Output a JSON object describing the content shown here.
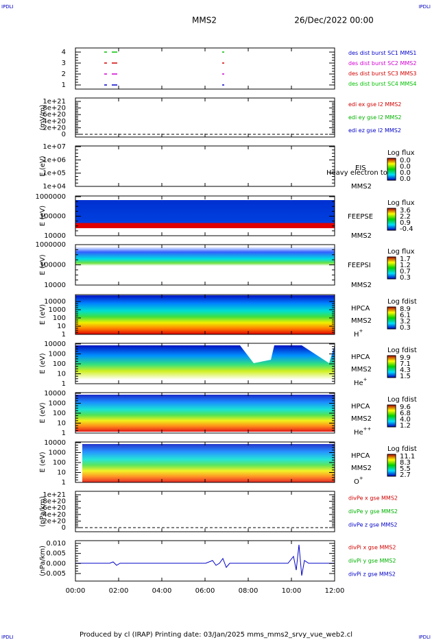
{
  "header": {
    "corner_left": "IPDLI",
    "corner_right": "IPDLI",
    "spacecraft": "MMS2",
    "date": "26/Dec/2022 00:00"
  },
  "panels": [
    {
      "ylabel": null,
      "yticks": [
        "4",
        "3",
        "2",
        "1"
      ],
      "legend": [
        {
          "text": "des dist burst SC1 MMS1",
          "color": "#0000c8"
        },
        {
          "text": "des dist burst SC2 MMS2",
          "color": "#d000d0"
        },
        {
          "text": "des dist burst SC3 MMS3",
          "color": "#d00000"
        },
        {
          "text": "des dist burst SC4 MMS4",
          "color": "#00c000"
        }
      ]
    },
    {
      "ylabel": "(mV/m)",
      "yticks": [
        "1e+21",
        "8e+20",
        "6e+20",
        "4e+20",
        "2e+20",
        "0"
      ],
      "legend": [
        {
          "text": "edi ex gse l2 MMS2",
          "color": "#d00000"
        },
        {
          "text": "edi ey gse l2 MMS2",
          "color": "#00b000"
        },
        {
          "text": "edi ez gse l2 MMS2",
          "color": "#0000c8"
        }
      ]
    },
    {
      "ylabel": "E (eV)",
      "yticks": [
        "1e+07",
        "1e+06",
        "1e+05",
        "1e+04"
      ],
      "labels": [
        "EIS",
        "Heavy electron to",
        "MMS2"
      ],
      "colorbar": {
        "title": "Log flux",
        "ticks": [
          "0.0",
          "0.0",
          "0.0",
          "0.0"
        ]
      }
    },
    {
      "ylabel": "E (eV)",
      "yticks": [
        "1000000",
        "100000",
        "10000"
      ],
      "labels": [
        "FEEPSE",
        "MMS2"
      ],
      "colorbar": {
        "title": "Log flux",
        "ticks": [
          "3.6",
          "2.2",
          "0.9",
          "-0.4"
        ]
      }
    },
    {
      "ylabel": "E (eV)",
      "yticks": [
        "1000000",
        "100000",
        "10000"
      ],
      "labels": [
        "FEEPSI",
        "MMS2"
      ],
      "colorbar": {
        "title": "Log flux",
        "ticks": [
          "1.7",
          "1.2",
          "0.7",
          "0.3"
        ]
      }
    },
    {
      "ylabel": "E (eV)",
      "yticks": [
        "10000",
        "1000",
        "100",
        "10",
        "1"
      ],
      "labels": [
        "HPCA",
        "MMS2"
      ],
      "ion": {
        "base": "H",
        "sup": "+"
      },
      "colorbar": {
        "title": "Log fdist",
        "ticks": [
          "8.9",
          "6.1",
          "3.2",
          "0.3"
        ]
      }
    },
    {
      "ylabel": "E (eV)",
      "yticks": [
        "10000",
        "1000",
        "100",
        "10",
        "1"
      ],
      "labels": [
        "HPCA",
        "MMS2"
      ],
      "ion": {
        "base": "He",
        "sup": "+"
      },
      "colorbar": {
        "title": "Log fdist",
        "ticks": [
          "9.9",
          "7.1",
          "4.3",
          "1.5"
        ]
      }
    },
    {
      "ylabel": "E (eV)",
      "yticks": [
        "10000",
        "1000",
        "100",
        "10",
        "1"
      ],
      "labels": [
        "HPCA",
        "MMS2"
      ],
      "ion": {
        "base": "He",
        "sup": "++"
      },
      "colorbar": {
        "title": "Log fdist",
        "ticks": [
          "9.6",
          "6.8",
          "4.0",
          "1.2"
        ]
      }
    },
    {
      "ylabel": "E (eV)",
      "yticks": [
        "10000",
        "1000",
        "100",
        "10",
        "1"
      ],
      "labels": [
        "HPCA",
        "MMS2"
      ],
      "ion": {
        "base": "O",
        "sup": "+"
      },
      "colorbar": {
        "title": "Log fdist",
        "ticks": [
          "11.1",
          "8.3",
          "5.5",
          "2.7"
        ]
      }
    },
    {
      "ylabel": "(nPa/km)",
      "yticks": [
        "1e+21",
        "8e+20",
        "6e+20",
        "4e+20",
        "2e+20",
        "0"
      ],
      "legend": [
        {
          "text": "divPe x gse MMS2",
          "color": "#d00000"
        },
        {
          "text": "divPe y gse MMS2",
          "color": "#00b000"
        },
        {
          "text": "divPe z gse MMS2",
          "color": "#0000c8"
        }
      ]
    },
    {
      "ylabel": "(nPa/km)",
      "yticks": [
        "0.010",
        "0.005",
        "0.000",
        "-0.005"
      ],
      "legend": [
        {
          "text": "divPi x gse MMS2",
          "color": "#d00000"
        },
        {
          "text": "divPi y gse MMS2",
          "color": "#00b000"
        },
        {
          "text": "divPi z gse MMS2",
          "color": "#0000c8"
        }
      ]
    }
  ],
  "time_axis": {
    "ticks": [
      "00:00",
      "02:00",
      "04:00",
      "06:00",
      "08:00",
      "10:00",
      "12:00"
    ]
  },
  "footer": {
    "text": "Produced by cl (IRAP)   Printing date: 03/Jan/2025   mms_mms2_srvy_vue_web2.cl",
    "corner_left": "IPDLI",
    "corner_right": "IPDLI"
  }
}
